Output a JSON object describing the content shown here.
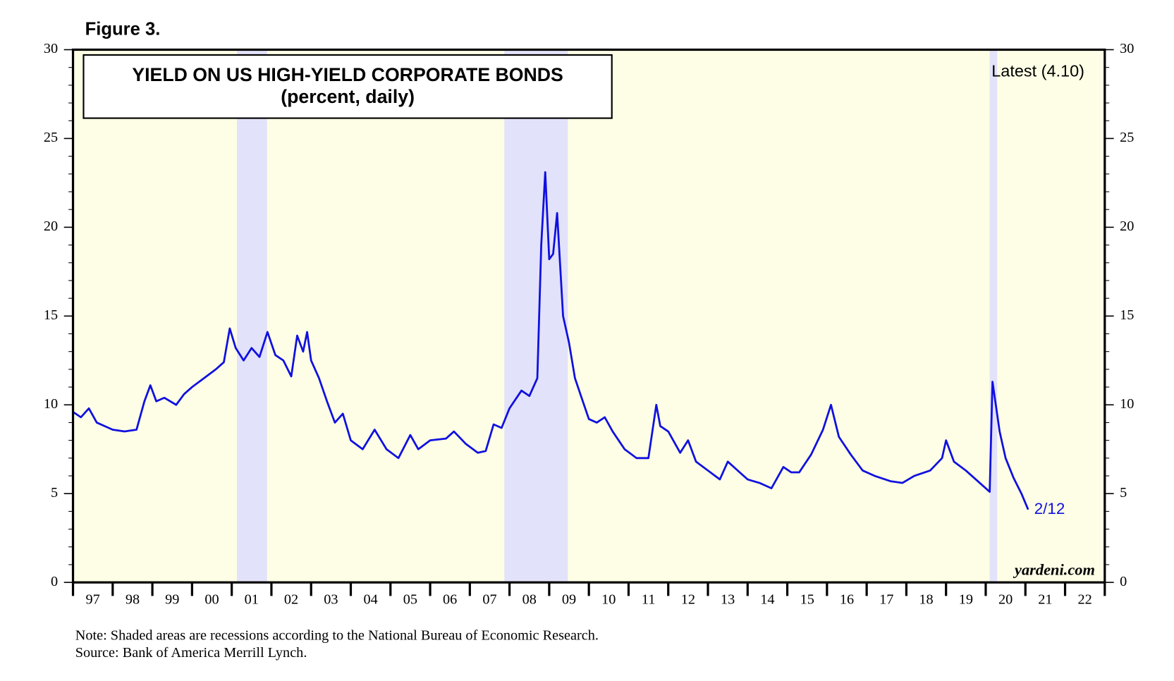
{
  "chart_data": {
    "type": "line",
    "figure_label": "Figure 3.",
    "title": "YIELD ON US HIGH-YIELD CORPORATE BONDS",
    "subtitle": "(percent, daily)",
    "annotations": {
      "latest": "Latest (4.10)",
      "last_date": "2/12",
      "site": "yardeni.com"
    },
    "note": "Note: Shaded areas are recessions according to the National Bureau of Economic Research.",
    "source": "Source: Bank of America Merrill Lynch.",
    "color": "#1010e0",
    "recession_color": "#e2e2fa",
    "background": "#fefee6",
    "recessions": [
      [
        2001.13,
        2001.89
      ],
      [
        2007.87,
        2009.47
      ],
      [
        2020.1,
        2020.29
      ]
    ],
    "x": [
      1997.0,
      1997.2,
      1997.4,
      1997.6,
      1997.8,
      1998.0,
      1998.3,
      1998.6,
      1998.8,
      1998.95,
      1999.1,
      1999.3,
      1999.6,
      1999.8,
      2000.0,
      2000.3,
      2000.6,
      2000.8,
      2000.95,
      2001.1,
      2001.3,
      2001.5,
      2001.7,
      2001.9,
      2002.1,
      2002.3,
      2002.5,
      2002.65,
      2002.8,
      2002.9,
      2003.0,
      2003.2,
      2003.4,
      2003.6,
      2003.8,
      2004.0,
      2004.3,
      2004.6,
      2004.9,
      2005.2,
      2005.5,
      2005.7,
      2006.0,
      2006.4,
      2006.6,
      2006.9,
      2007.2,
      2007.4,
      2007.6,
      2007.8,
      2008.0,
      2008.3,
      2008.5,
      2008.7,
      2008.8,
      2008.9,
      2009.0,
      2009.1,
      2009.2,
      2009.35,
      2009.5,
      2009.65,
      2009.8,
      2010.0,
      2010.2,
      2010.4,
      2010.6,
      2010.9,
      2011.2,
      2011.5,
      2011.7,
      2011.8,
      2012.0,
      2012.3,
      2012.5,
      2012.7,
      2013.0,
      2013.3,
      2013.5,
      2013.8,
      2014.0,
      2014.3,
      2014.6,
      2014.9,
      2015.1,
      2015.3,
      2015.6,
      2015.9,
      2016.1,
      2016.3,
      2016.6,
      2016.9,
      2017.2,
      2017.6,
      2017.9,
      2018.2,
      2018.6,
      2018.9,
      2019.0,
      2019.2,
      2019.5,
      2019.8,
      2020.1,
      2020.17,
      2020.35,
      2020.5,
      2020.7,
      2020.9,
      2021.07
    ],
    "values": [
      9.6,
      9.3,
      9.8,
      9.0,
      8.8,
      8.6,
      8.5,
      8.6,
      10.2,
      11.1,
      10.2,
      10.4,
      10.0,
      10.6,
      11.0,
      11.5,
      12.0,
      12.4,
      14.3,
      13.2,
      12.5,
      13.2,
      12.7,
      14.1,
      12.8,
      12.5,
      11.6,
      13.9,
      13.0,
      14.1,
      12.5,
      11.5,
      10.2,
      9.0,
      9.5,
      8.0,
      7.5,
      8.6,
      7.5,
      7.0,
      8.3,
      7.5,
      8.0,
      8.1,
      8.5,
      7.8,
      7.3,
      7.4,
      8.9,
      8.7,
      9.8,
      10.8,
      10.5,
      11.5,
      19.0,
      23.1,
      18.2,
      18.5,
      20.8,
      15.0,
      13.5,
      11.5,
      10.5,
      9.2,
      9.0,
      9.3,
      8.5,
      7.5,
      7.0,
      7.0,
      10.0,
      8.8,
      8.5,
      7.3,
      8.0,
      6.8,
      6.3,
      5.8,
      6.8,
      6.2,
      5.8,
      5.6,
      5.3,
      6.5,
      6.2,
      6.2,
      7.2,
      8.6,
      10.0,
      8.2,
      7.2,
      6.3,
      6.0,
      5.7,
      5.6,
      6.0,
      6.3,
      7.0,
      8.0,
      6.8,
      6.3,
      5.7,
      5.1,
      11.3,
      8.5,
      7.0,
      5.9,
      5.0,
      4.1
    ],
    "xlim": [
      1997,
      2023
    ],
    "xticks": [
      {
        "value": 1997,
        "label": "97"
      },
      {
        "value": 1998,
        "label": "98"
      },
      {
        "value": 1999,
        "label": "99"
      },
      {
        "value": 2000,
        "label": "00"
      },
      {
        "value": 2001,
        "label": "01"
      },
      {
        "value": 2002,
        "label": "02"
      },
      {
        "value": 2003,
        "label": "03"
      },
      {
        "value": 2004,
        "label": "04"
      },
      {
        "value": 2005,
        "label": "05"
      },
      {
        "value": 2006,
        "label": "06"
      },
      {
        "value": 2007,
        "label": "07"
      },
      {
        "value": 2008,
        "label": "08"
      },
      {
        "value": 2009,
        "label": "09"
      },
      {
        "value": 2010,
        "label": "10"
      },
      {
        "value": 2011,
        "label": "11"
      },
      {
        "value": 2012,
        "label": "12"
      },
      {
        "value": 2013,
        "label": "13"
      },
      {
        "value": 2014,
        "label": "14"
      },
      {
        "value": 2015,
        "label": "15"
      },
      {
        "value": 2016,
        "label": "16"
      },
      {
        "value": 2017,
        "label": "17"
      },
      {
        "value": 2018,
        "label": "18"
      },
      {
        "value": 2019,
        "label": "19"
      },
      {
        "value": 2020,
        "label": "20"
      },
      {
        "value": 2021,
        "label": "21"
      },
      {
        "value": 2022,
        "label": "22"
      }
    ],
    "ylim": [
      0,
      30
    ],
    "yticks": [
      0,
      5,
      10,
      15,
      20,
      25,
      30
    ]
  }
}
